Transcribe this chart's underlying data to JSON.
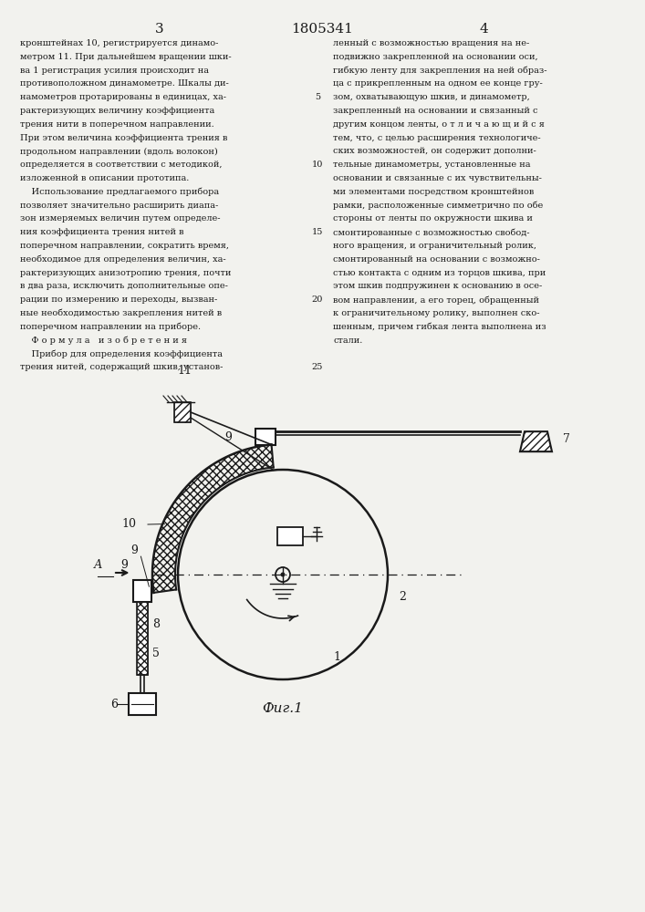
{
  "page_number_left": "3",
  "patent_number": "1805341",
  "page_number_right": "4",
  "text_left": "кронштейнах 10, регистрируется динамо-\nметром 11. При дальнейшем вращении шки-\nва 1 регистрация усилия происходит на\nпротивоположном динамометре. Шкалы ди-\nнамометров протарированы в единицах, ха-\nрактеризующих величину коэффициента\nтрения нити в поперечном направлении.\nПри этом величина коэффициента трения в\nпродольном направлении (вдоль волокон)\nопределяется в соответствии с методикой,\nизложенной в описании прототипа.\n    Использование предлагаемого прибора\nпозволяет значительно расширить диапа-\nзон измеряемых величин путем определе-\nния коэффициента трения нитей в\nпоперечном направлении, сократить время,\nнеобходимое для определения величин, ха-\nрактеризующих анизотропию трения, почти\nв два раза, исключить дополнительные опе-\nрации по измерению и переходы, вызван-\nные необходимостью закрепления нитей в\nпоперечном направлении на приборе.\n    Ф о р м у л а   и з о б р е т е н и я\n    Прибор для определения коэффициента\nтрения нитей, содержащий шкив, установ-",
  "line_numbers_left": [
    5,
    10,
    15,
    20,
    25
  ],
  "text_right": "ленный с возможностью вращения на не-\nподвижно закрепленной на основании оси,\nгибкую ленту для закрепления на ней образ-\nца с прикрепленным на одном ее конце гру-\nзом, охватывающую шкив, и динамометр,\nзакрепленный на основании и связанный с\nдругим концом ленты, о т л и ч а ю щ и й с я\nтем, что, с целью расширения технологиче-\nских возможностей, он содержит дополни-\nтельные динамометры, установленные на\nосновании и связанные с их чувствительны-\nми элементами посредством кронштейнов\nрамки, расположенные симметрично по обе\nстороны от ленты по окружности шкива и\nсмонтированные с возможностью свобод-\nного вращения, и ограничительный ролик,\nсмонтированный на основании с возможно-\nстью контакта с одним из торцов шкива, при\nэтом шкив подпружинен к основанию в осе-\nвом направлении, а его торец, обращенный\nк ограничительному ролику, выполнен ско-\nшенным, причем гибкая лента выполнена из\nстали.",
  "fig_label": "Фиг.1",
  "bg_color": "#f2f2ee",
  "line_color": "#1a1a1a"
}
